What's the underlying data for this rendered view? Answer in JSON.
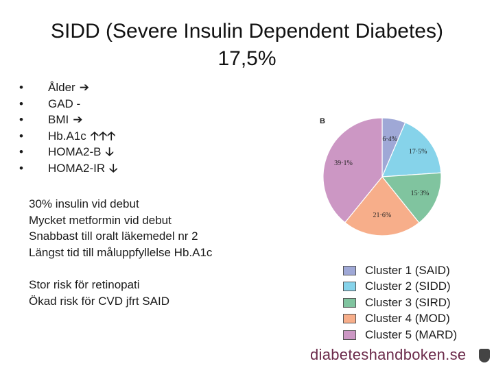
{
  "title": {
    "line1": "SIDD (Severe Insulin Dependent Diabetes)",
    "line2": "17,5%"
  },
  "bullets": [
    {
      "label": "Ålder",
      "marker": "➔"
    },
    {
      "label": "GAD  -",
      "marker": ""
    },
    {
      "label": "BMI",
      "marker": "➔"
    },
    {
      "label": "Hb.A1c",
      "marker": "🡡🡡🡡"
    },
    {
      "label": "HOMA2-B",
      "marker": "🡣"
    },
    {
      "label": "HOMA2-IR",
      "marker": "🡣"
    }
  ],
  "bullet_symbol": "•",
  "text_block1": [
    "30% insulin vid debut",
    "Mycket metformin vid debut",
    "Snabbast till oralt läkemedel nr 2",
    "Längst tid till måluppfyllelse Hb.A1c"
  ],
  "text_block2": [
    "Stor risk för retinopati",
    "Ökad risk för CVD jfrt SAID"
  ],
  "chart_data": {
    "type": "pie",
    "panel_label": "B",
    "slices": [
      {
        "name": "Cluster 1 (SAID)",
        "value": 6.4,
        "label": "6·4%",
        "color": "#9fa8d6"
      },
      {
        "name": "Cluster 2 (SIDD)",
        "value": 17.5,
        "label": "17·5%",
        "color": "#86d3ea"
      },
      {
        "name": "Cluster 3 (SIRD)",
        "value": 15.3,
        "label": "15·3%",
        "color": "#80c49f"
      },
      {
        "name": "Cluster 4 (MOD)",
        "value": 21.6,
        "label": "21·6%",
        "color": "#f7ae8a"
      },
      {
        "name": "Cluster 5 (MARD)",
        "value": 39.1,
        "label": "39·1%",
        "color": "#cc97c4"
      }
    ],
    "start": "12 o'clock",
    "direction": "clockwise",
    "legend_position": "bottom"
  },
  "brand": "diabeteshandboken.se",
  "colors": {
    "brand": "#6b2a4a"
  }
}
